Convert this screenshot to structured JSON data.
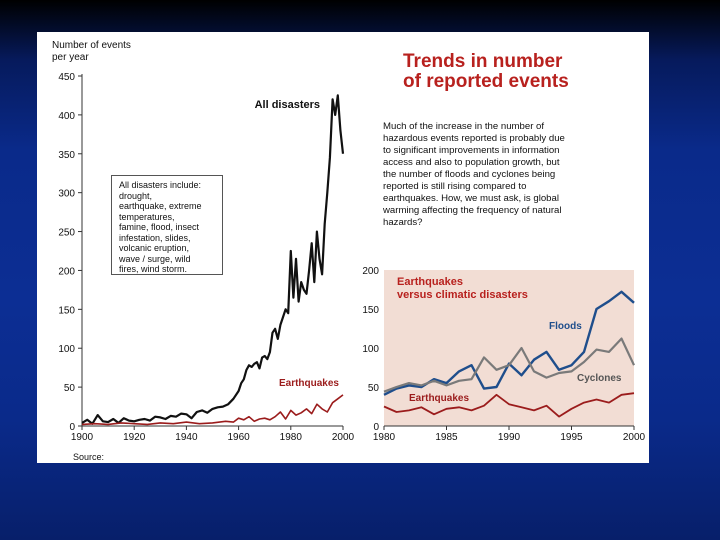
{
  "headline": [
    "Trends in number",
    "of reported events"
  ],
  "paragraph": [
    "Much of the increase in the number of",
    "hazardous events reported is probably due",
    "to significant improvements in information",
    "access and also to population growth, but",
    "the number of floods and cyclones being",
    "reported is still rising compared to",
    "earthquakes. How, we must ask, is global",
    "warming affecting the frequency of natural",
    "hazards?"
  ],
  "note_box": [
    "All disasters include:",
    "drought,",
    "earthquake, extreme",
    "temperatures,",
    "famine, flood, insect",
    "infestation, slides,",
    "volcanic eruption,",
    "wave / surge, wild",
    "fires, wind storm."
  ],
  "source_label": "Source:",
  "colors": {
    "all_disasters": "#111111",
    "earthquakes": "#9b1c1c",
    "floods": "#1f4e8c",
    "cyclones": "#7a7a7a",
    "title_red": "#b8211e",
    "inset_bg": "#f2ddd4"
  },
  "chart_data": [
    {
      "type": "line",
      "ylabel": "Number of events per year",
      "xlim": [
        1900,
        2000
      ],
      "ylim": [
        0,
        450
      ],
      "xticks": [
        1900,
        1920,
        1940,
        1960,
        1980,
        2000
      ],
      "yticks": [
        0,
        50,
        100,
        150,
        200,
        250,
        300,
        350,
        400,
        450
      ],
      "grid": false,
      "series": [
        {
          "name": "All disasters",
          "x": [
            1900,
            1902,
            1904,
            1906,
            1908,
            1910,
            1912,
            1914,
            1916,
            1918,
            1920,
            1922,
            1924,
            1926,
            1928,
            1930,
            1932,
            1934,
            1936,
            1938,
            1940,
            1942,
            1944,
            1946,
            1948,
            1950,
            1952,
            1954,
            1956,
            1958,
            1960,
            1961,
            1962,
            1963,
            1964,
            1965,
            1966,
            1967,
            1968,
            1969,
            1970,
            1971,
            1972,
            1973,
            1974,
            1975,
            1976,
            1977,
            1978,
            1979,
            1980,
            1981,
            1982,
            1983,
            1984,
            1985,
            1986,
            1987,
            1988,
            1989,
            1990,
            1991,
            1992,
            1993,
            1994,
            1995,
            1996,
            1997,
            1998,
            1999,
            2000
          ],
          "y": [
            4,
            8,
            3,
            14,
            6,
            5,
            9,
            4,
            10,
            7,
            6,
            8,
            9,
            7,
            12,
            11,
            9,
            13,
            12,
            16,
            15,
            10,
            18,
            20,
            17,
            22,
            24,
            25,
            28,
            35,
            45,
            55,
            60,
            72,
            78,
            76,
            80,
            82,
            74,
            88,
            90,
            86,
            95,
            120,
            125,
            112,
            130,
            140,
            150,
            145,
            225,
            165,
            215,
            160,
            185,
            175,
            170,
            200,
            235,
            185,
            250,
            215,
            195,
            260,
            300,
            345,
            420,
            400,
            425,
            380,
            350
          ]
        },
        {
          "name": "Earthquakes",
          "x": [
            1900,
            1905,
            1910,
            1915,
            1920,
            1925,
            1930,
            1935,
            1940,
            1945,
            1950,
            1955,
            1958,
            1960,
            1962,
            1964,
            1966,
            1968,
            1970,
            1972,
            1974,
            1976,
            1978,
            1980,
            1982,
            1984,
            1986,
            1988,
            1990,
            1992,
            1994,
            1996,
            1998,
            2000
          ],
          "y": [
            2,
            3,
            2,
            4,
            3,
            2,
            4,
            3,
            5,
            3,
            4,
            6,
            5,
            10,
            8,
            12,
            6,
            9,
            10,
            8,
            12,
            18,
            9,
            20,
            14,
            17,
            22,
            16,
            28,
            22,
            18,
            30,
            35,
            40
          ]
        }
      ]
    },
    {
      "type": "line",
      "title": "Earthquakes versus climatic disasters",
      "xlim": [
        1980,
        2000
      ],
      "ylim": [
        0,
        200
      ],
      "xticks": [
        1980,
        1985,
        1990,
        1995,
        2000
      ],
      "yticks": [
        0,
        50,
        100,
        150,
        200
      ],
      "grid": false,
      "series": [
        {
          "name": "Floods",
          "x": [
            1980,
            1981,
            1982,
            1983,
            1984,
            1985,
            1986,
            1987,
            1988,
            1989,
            1990,
            1991,
            1992,
            1993,
            1994,
            1995,
            1996,
            1997,
            1998,
            1999,
            2000
          ],
          "y": [
            40,
            48,
            52,
            50,
            60,
            55,
            70,
            78,
            48,
            50,
            80,
            65,
            85,
            95,
            72,
            78,
            95,
            150,
            160,
            172,
            158
          ]
        },
        {
          "name": "Cyclones",
          "x": [
            1980,
            1981,
            1982,
            1983,
            1984,
            1985,
            1986,
            1987,
            1988,
            1989,
            1990,
            1991,
            1992,
            1993,
            1994,
            1995,
            1996,
            1997,
            1998,
            1999,
            2000
          ],
          "y": [
            44,
            50,
            55,
            52,
            58,
            52,
            58,
            60,
            88,
            72,
            78,
            100,
            70,
            62,
            68,
            70,
            82,
            98,
            95,
            112,
            78
          ]
        },
        {
          "name": "Earthquakes",
          "x": [
            1980,
            1981,
            1982,
            1983,
            1984,
            1985,
            1986,
            1987,
            1988,
            1989,
            1990,
            1991,
            1992,
            1993,
            1994,
            1995,
            1996,
            1997,
            1998,
            1999,
            2000
          ],
          "y": [
            25,
            18,
            20,
            24,
            15,
            22,
            24,
            20,
            26,
            40,
            28,
            24,
            20,
            26,
            12,
            22,
            30,
            34,
            30,
            40,
            42
          ]
        }
      ]
    }
  ]
}
